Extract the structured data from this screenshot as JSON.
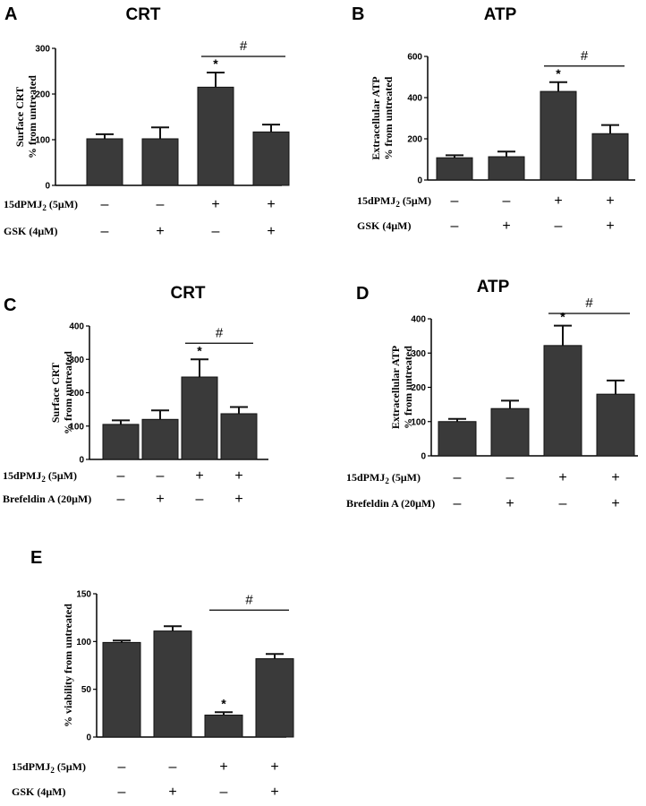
{
  "chart_data": [
    {
      "type": "bar",
      "panel": "A",
      "title": "CRT",
      "ylabel": [
        "Surface CRT",
        "% from untreated"
      ],
      "ylim": [
        0,
        300
      ],
      "yticks": [
        0,
        100,
        200,
        300
      ],
      "values": [
        102,
        102,
        215,
        117
      ],
      "errors": [
        10,
        25,
        32,
        16
      ],
      "treatments": [
        {
          "label": "15dPMJ",
          "sub": "2",
          "suffix": " (5μM)",
          "signs": [
            "-",
            "-",
            "+",
            "+"
          ]
        },
        {
          "label": "GSK (4μM)",
          "sub": "",
          "suffix": "",
          "signs": [
            "-",
            "+",
            "-",
            "+"
          ]
        }
      ],
      "stars": [
        "",
        "",
        "*",
        ""
      ],
      "bracket": {
        "from": 2,
        "to": 3,
        "text": "#"
      },
      "grid": false
    },
    {
      "type": "bar",
      "panel": "B",
      "title": "ATP",
      "ylabel": [
        "Extracellular ATP",
        "% from untreated"
      ],
      "ylim": [
        0,
        600
      ],
      "yticks": [
        0,
        200,
        400,
        600
      ],
      "values": [
        108,
        113,
        430,
        225
      ],
      "errors": [
        12,
        25,
        45,
        42
      ],
      "treatments": [
        {
          "label": "15dPMJ",
          "sub": "2",
          "suffix": " (5μM)",
          "signs": [
            "-",
            "-",
            "+",
            "+"
          ]
        },
        {
          "label": "GSK (4μM)",
          "sub": "",
          "suffix": "",
          "signs": [
            "-",
            "+",
            "-",
            "+"
          ]
        }
      ],
      "stars": [
        "",
        "",
        "*",
        ""
      ],
      "bracket": {
        "from": 2,
        "to": 3,
        "text": "#"
      },
      "grid": false
    },
    {
      "type": "bar",
      "panel": "C",
      "title": "CRT",
      "ylabel": [
        "Surface CRT",
        "% from untreated"
      ],
      "ylim": [
        0,
        400
      ],
      "yticks": [
        0,
        100,
        200,
        300,
        400
      ],
      "values": [
        105,
        120,
        247,
        137
      ],
      "errors": [
        12,
        27,
        53,
        20
      ],
      "treatments": [
        {
          "label": "15dPMJ",
          "sub": "2",
          "suffix": " (5μM)",
          "signs": [
            "-",
            "-",
            "+",
            "+"
          ]
        },
        {
          "label": "Brefeldin A (20μM)",
          "sub": "",
          "suffix": "",
          "signs": [
            "-",
            "+",
            "-",
            "+"
          ]
        }
      ],
      "stars": [
        "",
        "",
        "*",
        ""
      ],
      "bracket": {
        "from": 2,
        "to": 3,
        "text": "#"
      },
      "grid": false
    },
    {
      "type": "bar",
      "panel": "D",
      "title": "ATP",
      "ylabel": [
        "Extracellular ATP",
        "% from untreated"
      ],
      "ylim": [
        0,
        400
      ],
      "yticks": [
        0,
        100,
        200,
        300,
        400
      ],
      "values": [
        100,
        138,
        322,
        180
      ],
      "errors": [
        8,
        23,
        58,
        40
      ],
      "treatments": [
        {
          "label": "15dPMJ",
          "sub": "2",
          "suffix": " (5μM)",
          "signs": [
            "-",
            "-",
            "+",
            "+"
          ]
        },
        {
          "label": "Brefeldin A (20μM)",
          "sub": "",
          "suffix": "",
          "signs": [
            "-",
            "+",
            "-",
            "+"
          ]
        }
      ],
      "stars": [
        "",
        "",
        "*",
        ""
      ],
      "bracket": {
        "from": 2,
        "to": 3,
        "text": "#"
      },
      "grid": false
    },
    {
      "type": "bar",
      "panel": "E",
      "title": "",
      "ylabel": [
        "% viability from untreated"
      ],
      "ylim": [
        0,
        150
      ],
      "yticks": [
        0,
        50,
        100,
        150
      ],
      "values": [
        99,
        111,
        23,
        82
      ],
      "errors": [
        2,
        5,
        3,
        5
      ],
      "treatments": [
        {
          "label": "15dPMJ",
          "sub": "2",
          "suffix": " (5μM)",
          "signs": [
            "-",
            "-",
            "+",
            "+"
          ]
        },
        {
          "label": "GSK (4μM)",
          "sub": "",
          "suffix": "",
          "signs": [
            "-",
            "+",
            "-",
            "+"
          ]
        }
      ],
      "stars": [
        "",
        "",
        "*",
        ""
      ],
      "bracket": {
        "from": 2,
        "to": 3,
        "text": "#"
      },
      "grid": false
    }
  ],
  "colors": {
    "bar": "#3a3a3a",
    "ink": "#000000"
  }
}
